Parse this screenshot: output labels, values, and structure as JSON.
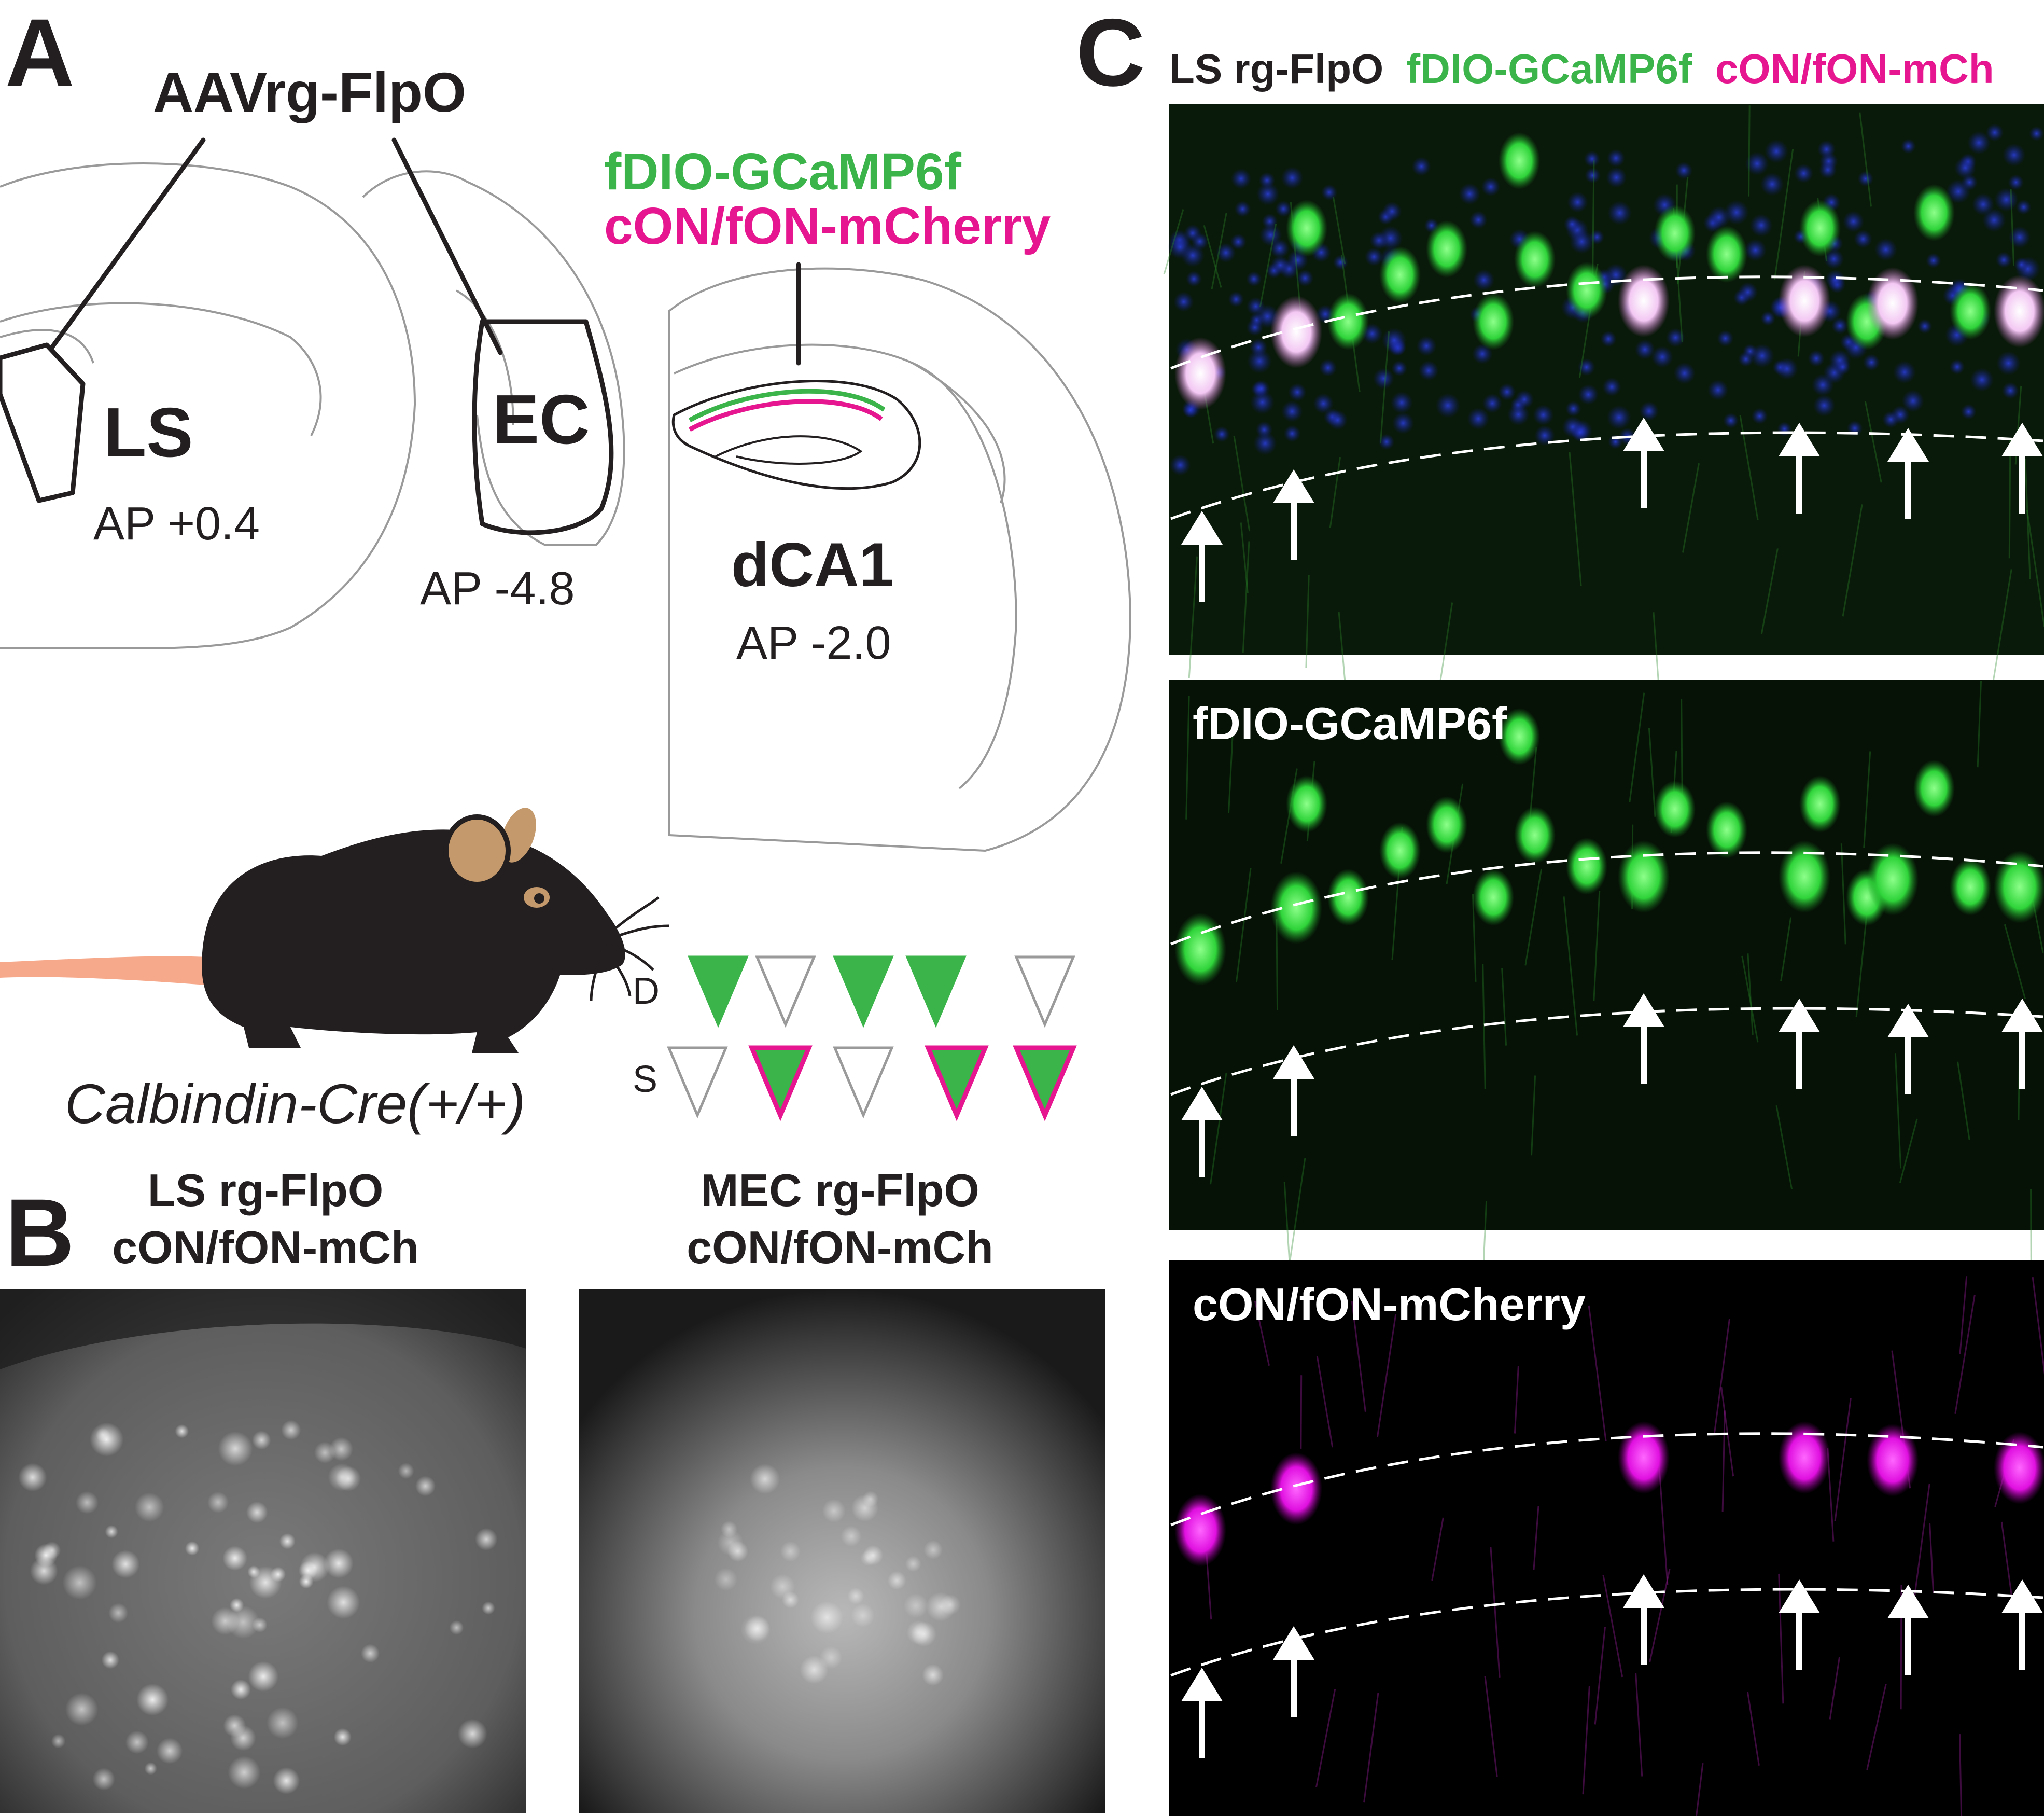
{
  "panels": {
    "a": {
      "letter": "A",
      "injection_label": "AAVrg-FlpO",
      "viral_top": "fDIO-GCaMP6f",
      "viral_bottom": "cON/fON-mCherry",
      "regions": [
        {
          "name": "LS",
          "ap": "AP +0.4"
        },
        {
          "name": "EC",
          "ap": "AP -4.8"
        },
        {
          "name": "dCA1",
          "ap": "AP -2.0"
        }
      ],
      "mouse_label": "Calbindin-Cre(+/+)",
      "layer_d": "D",
      "layer_s": "S",
      "colors": {
        "green": "#3bb54a",
        "magenta": "#e5168f",
        "mouse": "#231f20",
        "ear": "#c49a6c",
        "tail": "#f7a98b"
      }
    },
    "b": {
      "letter": "B",
      "images": [
        {
          "line1": "LS rg-FlpO",
          "line2": "cON/fON-mCh"
        },
        {
          "line1": "MEC rg-FlpO",
          "line2": "cON/fON-mCh"
        }
      ]
    },
    "c": {
      "letter": "C",
      "header": {
        "part1": "LS rg-FlpO",
        "part2": "fDIO-GCaMP6f",
        "part3": "cON/fON-mCh"
      },
      "merged_label": "",
      "green_label": "fDIO-GCaMP6f",
      "magenta_label": "cON/fON-mCherry"
    }
  }
}
